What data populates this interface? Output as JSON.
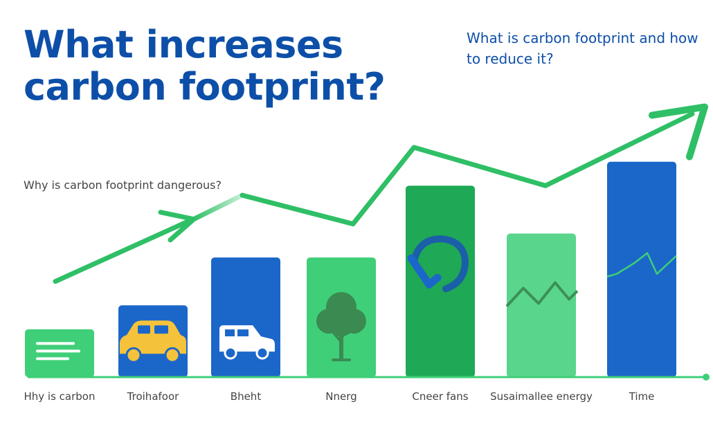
{
  "title": "What increases carbon footprint?",
  "subtitle": "What is carbon footprint and how to reduce it?",
  "question": "Why is carbon footprint dangerous?",
  "colors": {
    "title": "#0d4fa8",
    "blue_bar": "#1b67c9",
    "green_bar": "#3fcf78",
    "dark_green_bar": "#1fa855",
    "light_green_bar": "#59d68c",
    "arrow": "#2fbf66",
    "axis": "#3fcf78"
  },
  "chart_data": {
    "type": "bar",
    "categories": [
      "Hhy is carbon",
      "Troihafoor",
      "Bheht",
      "Nnerg",
      "Cneer fans",
      "Susaimallee energy",
      "Time"
    ],
    "values": [
      10,
      15,
      25,
      25,
      40,
      30,
      45
    ],
    "bar_colors": [
      "green",
      "blue",
      "blue",
      "green",
      "dark_green",
      "light_green",
      "blue"
    ],
    "bar_icons": [
      "document-icon",
      "car-icon",
      "truck-icon",
      "tree-icon",
      "recycle-icon",
      "zigzag-icon",
      "trend-line-icon"
    ],
    "trend_line": [
      20,
      33,
      38,
      32,
      48,
      40,
      55
    ],
    "ylim": [
      0,
      60
    ],
    "grid": false,
    "legend": "none"
  }
}
